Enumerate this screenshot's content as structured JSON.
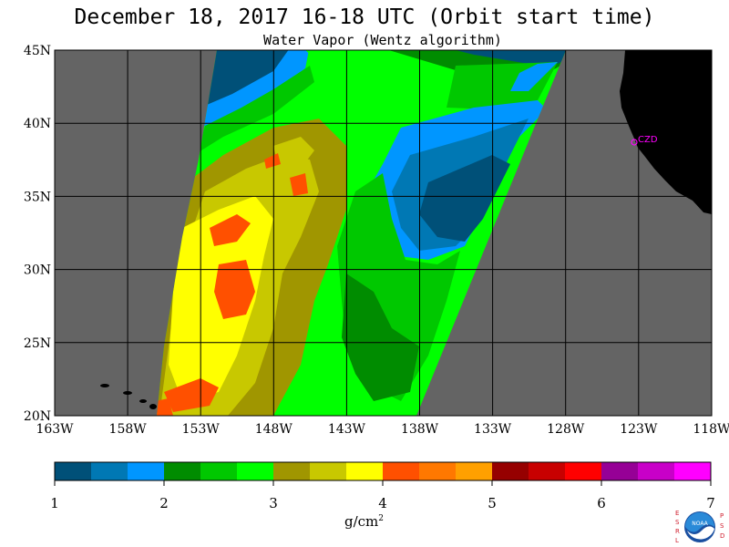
{
  "title": "December 18, 2017  16-18 UTC  (Orbit start time)",
  "subtitle": "Water Vapor (Wentz algorithm)",
  "lat_labels": [
    "45N",
    "40N",
    "35N",
    "30N",
    "25N",
    "20N"
  ],
  "lon_labels": [
    "163W",
    "158W",
    "153W",
    "148W",
    "143W",
    "138W",
    "133W",
    "128W",
    "123W",
    "118W"
  ],
  "station_label": "CZD",
  "colorbar": {
    "ticks": [
      "1",
      "2",
      "3",
      "4",
      "5",
      "6",
      "7"
    ],
    "units": "g/cm",
    "units_exp": "2",
    "colors": [
      "#005078",
      "#0078b4",
      "#0096ff",
      "#008c00",
      "#00c800",
      "#00ff00",
      "#a09600",
      "#c8c800",
      "#ffff00",
      "#ff5000",
      "#ff7800",
      "#ffa000",
      "#960000",
      "#c80000",
      "#ff0000",
      "#960096",
      "#c800c8",
      "#ff00ff"
    ]
  },
  "logo": {
    "left_letters": "ESRL",
    "right_letters": "PSD",
    "emblem_text": "NOAA"
  },
  "colors": {
    "no_data": "#646464",
    "land": "#000000",
    "grid": "#000000",
    "station": "#ff00ff"
  }
}
